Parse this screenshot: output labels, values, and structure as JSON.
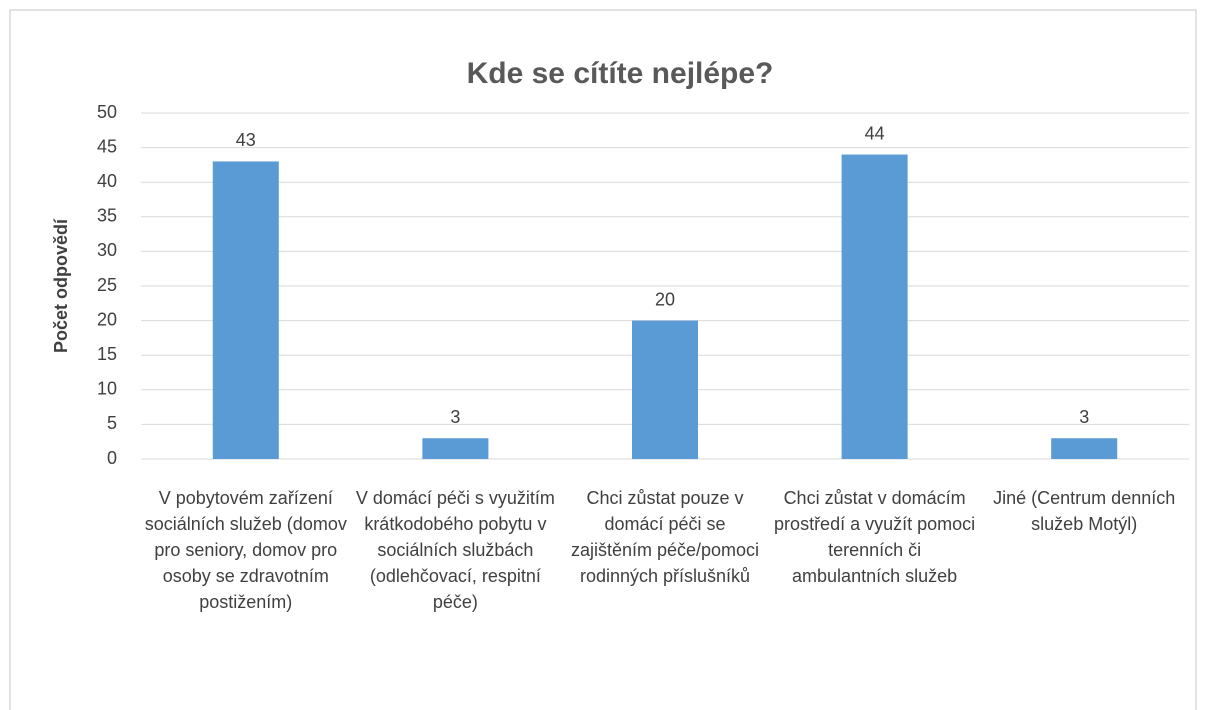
{
  "chart_data": {
    "type": "bar",
    "title": "Kde se cítíte nejlépe?",
    "y_label": "Počet odpovědí",
    "categories": [
      "V pobytovém zařízení sociálních služeb (domov pro seniory, domov pro osoby se zdravotním postižením)",
      "V domácí péči s využitím krátkodobého pobytu v sociálních službách (odlehčovací, respitní péče)",
      "Chci zůstat pouze v domácí péči se zajištěním péče/pomoci rodinných příslušníků",
      "Chci zůstat v domácím prostředí a využít pomoci terenních či ambulantních služeb",
      "Jiné (Centrum denních služeb Motýl)"
    ],
    "values": [
      43,
      3,
      20,
      44,
      3
    ],
    "color": "#5b9bd5",
    "ylim": [
      0,
      50
    ],
    "yticks": [
      0,
      5,
      10,
      15,
      20,
      25,
      30,
      35,
      40,
      45,
      50
    ],
    "grid": true
  }
}
